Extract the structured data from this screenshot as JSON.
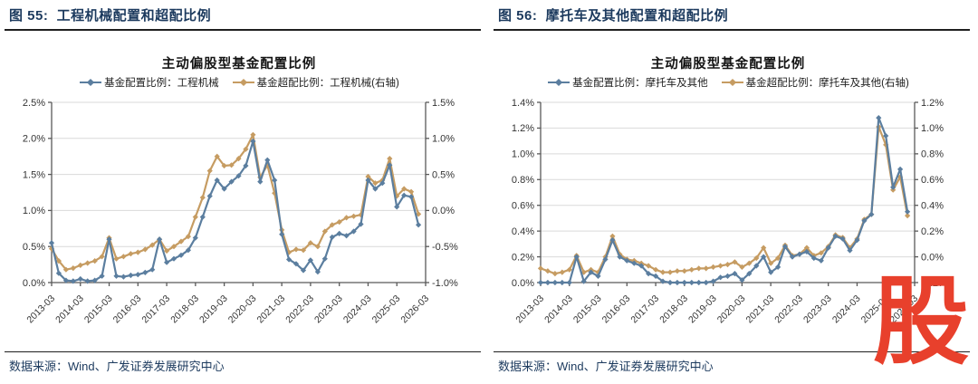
{
  "page": {
    "background": "#ffffff",
    "watermark": "股",
    "watermark_color": "#E8402C",
    "caption_color": "#1C3A5E",
    "grid_color": "#D9D9D9",
    "axis_color": "#595959"
  },
  "figures": [
    {
      "caption": "图 55:  工程机械配置和超配比例",
      "source": "数据来源：Wind、广发证券发展研究中心",
      "chart_data": {
        "type": "line",
        "title": "主动偏股型基金配置比例",
        "legend_position": "top",
        "grid": true,
        "marker": "diamond",
        "x_range": [
          "2013-03",
          "2026-03"
        ],
        "x_tick_labels": [
          "2013-03",
          "2014-03",
          "2015-03",
          "2016-03",
          "2017-03",
          "2018-03",
          "2019-03",
          "2020-03",
          "2021-03",
          "2022-03",
          "2023-03",
          "2024-03",
          "2025-03",
          "2026-03"
        ],
        "left_axis": {
          "min": 0.0,
          "max": 2.5,
          "step": 0.5,
          "tick_labels": [
            "0.0%",
            "0.5%",
            "1.0%",
            "1.5%",
            "2.0%",
            "2.5%"
          ]
        },
        "right_axis": {
          "min": -1.0,
          "max": 1.5,
          "step": 0.5,
          "tick_labels": [
            "-1.0%",
            "-0.5%",
            "0.0%",
            "0.5%",
            "1.0%",
            "1.5%"
          ]
        },
        "x_dates": [
          "2013-03",
          "2013-06",
          "2013-09",
          "2013-12",
          "2014-03",
          "2014-06",
          "2014-09",
          "2014-12",
          "2015-03",
          "2015-06",
          "2015-09",
          "2015-12",
          "2016-03",
          "2016-06",
          "2016-09",
          "2016-12",
          "2017-03",
          "2017-06",
          "2017-09",
          "2017-12",
          "2018-03",
          "2018-06",
          "2018-09",
          "2018-12",
          "2019-03",
          "2019-06",
          "2019-09",
          "2019-12",
          "2020-03",
          "2020-06",
          "2020-09",
          "2020-12",
          "2021-03",
          "2021-06",
          "2021-09",
          "2021-12",
          "2022-03",
          "2022-06",
          "2022-09",
          "2022-12",
          "2023-03",
          "2023-06",
          "2023-09",
          "2023-12",
          "2024-03",
          "2024-06",
          "2024-09",
          "2024-12",
          "2025-03",
          "2025-06",
          "2025-09",
          "2025-12"
        ],
        "series": [
          {
            "name": "基金配置比例：工程机械",
            "axis": "left",
            "color": "#5B7E9F",
            "values": [
              0.55,
              0.13,
              0.03,
              0.02,
              0.05,
              0.02,
              0.03,
              0.09,
              0.6,
              0.09,
              0.08,
              0.1,
              0.11,
              0.14,
              0.18,
              0.6,
              0.28,
              0.33,
              0.38,
              0.45,
              0.62,
              0.91,
              1.2,
              1.42,
              1.3,
              1.4,
              1.48,
              1.62,
              1.96,
              1.4,
              1.7,
              1.42,
              0.67,
              0.32,
              0.26,
              0.17,
              0.31,
              0.15,
              0.33,
              0.63,
              0.68,
              0.65,
              0.71,
              0.81,
              1.42,
              1.3,
              1.38,
              1.63,
              1.05,
              1.21,
              1.19,
              0.8
            ]
          },
          {
            "name": "基金超配比例：工程机械(右轴)",
            "axis": "right",
            "color": "#C69C62",
            "values": [
              -0.53,
              -0.7,
              -0.82,
              -0.8,
              -0.76,
              -0.73,
              -0.7,
              -0.64,
              -0.38,
              -0.67,
              -0.64,
              -0.6,
              -0.58,
              -0.54,
              -0.48,
              -0.4,
              -0.56,
              -0.5,
              -0.43,
              -0.36,
              -0.09,
              0.18,
              0.55,
              0.75,
              0.62,
              0.63,
              0.72,
              0.85,
              1.05,
              0.46,
              0.63,
              0.24,
              -0.27,
              -0.58,
              -0.54,
              -0.55,
              -0.45,
              -0.5,
              -0.29,
              -0.2,
              -0.16,
              -0.1,
              -0.08,
              -0.06,
              0.47,
              0.38,
              0.42,
              0.72,
              0.2,
              0.3,
              0.26,
              -0.05
            ]
          }
        ]
      }
    },
    {
      "caption": "图 56:  摩托车及其他配置和超配比例",
      "source": "数据来源：Wind、广发证券发展研究中心",
      "chart_data": {
        "type": "line",
        "title": "主动偏股型基金配置比例",
        "legend_position": "top",
        "grid": true,
        "marker": "diamond",
        "x_range": [
          "2013-03",
          "2026-03"
        ],
        "x_tick_labels": [
          "2013-03",
          "2014-03",
          "2015-03",
          "2016-03",
          "2017-03",
          "2018-03",
          "2019-03",
          "2020-03",
          "2021-03",
          "2022-03",
          "2023-03",
          "2024-03",
          "2025-03",
          "2026-03"
        ],
        "left_axis": {
          "min": 0.0,
          "max": 1.4,
          "step": 0.2,
          "tick_labels": [
            "0.0%",
            "0.2%",
            "0.4%",
            "0.6%",
            "0.8%",
            "1.0%",
            "1.2%",
            "1.4%"
          ]
        },
        "right_axis": {
          "min": -0.2,
          "max": 1.2,
          "step": 0.2,
          "tick_labels": [
            "-0.2%",
            "0.0%",
            "0.2%",
            "0.4%",
            "0.6%",
            "0.8%",
            "1.0%",
            "1.2%"
          ]
        },
        "x_dates": [
          "2013-03",
          "2013-06",
          "2013-09",
          "2013-12",
          "2014-03",
          "2014-06",
          "2014-09",
          "2014-12",
          "2015-03",
          "2015-06",
          "2015-09",
          "2015-12",
          "2016-03",
          "2016-06",
          "2016-09",
          "2016-12",
          "2017-03",
          "2017-06",
          "2017-09",
          "2017-12",
          "2018-03",
          "2018-06",
          "2018-09",
          "2018-12",
          "2019-03",
          "2019-06",
          "2019-09",
          "2019-12",
          "2020-03",
          "2020-06",
          "2020-09",
          "2020-12",
          "2021-03",
          "2021-06",
          "2021-09",
          "2021-12",
          "2022-03",
          "2022-06",
          "2022-09",
          "2022-12",
          "2023-03",
          "2023-06",
          "2023-09",
          "2023-12",
          "2024-03",
          "2024-06",
          "2024-09",
          "2024-12",
          "2025-03",
          "2025-06",
          "2025-09",
          "2025-12"
        ],
        "series": [
          {
            "name": "基金配置比例：摩托车及其他",
            "axis": "left",
            "color": "#5B7E9F",
            "values": [
              0.0,
              0.0,
              0.0,
              0.0,
              0.0,
              0.2,
              0.01,
              0.08,
              0.05,
              0.18,
              0.33,
              0.2,
              0.17,
              0.15,
              0.13,
              0.07,
              0.05,
              0.01,
              0.0,
              0.0,
              0.0,
              0.0,
              0.0,
              0.0,
              0.01,
              0.04,
              0.05,
              0.07,
              0.02,
              0.07,
              0.13,
              0.2,
              0.08,
              0.12,
              0.28,
              0.2,
              0.22,
              0.24,
              0.19,
              0.17,
              0.27,
              0.36,
              0.34,
              0.25,
              0.33,
              0.48,
              0.53,
              1.28,
              1.14,
              0.74,
              0.88,
              0.55
            ]
          },
          {
            "name": "基金超配比例：摩托车及其他(右轴)",
            "axis": "right",
            "color": "#C69C62",
            "values": [
              -0.09,
              -0.11,
              -0.13,
              -0.12,
              -0.1,
              0.01,
              -0.12,
              -0.1,
              -0.12,
              0.0,
              0.16,
              0.02,
              -0.02,
              -0.03,
              -0.05,
              -0.07,
              -0.1,
              -0.12,
              -0.12,
              -0.11,
              -0.11,
              -0.1,
              -0.09,
              -0.09,
              -0.08,
              -0.07,
              -0.06,
              -0.04,
              -0.08,
              -0.05,
              -0.01,
              0.07,
              -0.05,
              -0.01,
              0.09,
              0.01,
              0.02,
              0.07,
              0.01,
              0.03,
              0.08,
              0.17,
              0.15,
              0.07,
              0.14,
              0.29,
              0.33,
              1.01,
              0.87,
              0.52,
              0.62,
              0.32
            ]
          }
        ]
      }
    }
  ]
}
